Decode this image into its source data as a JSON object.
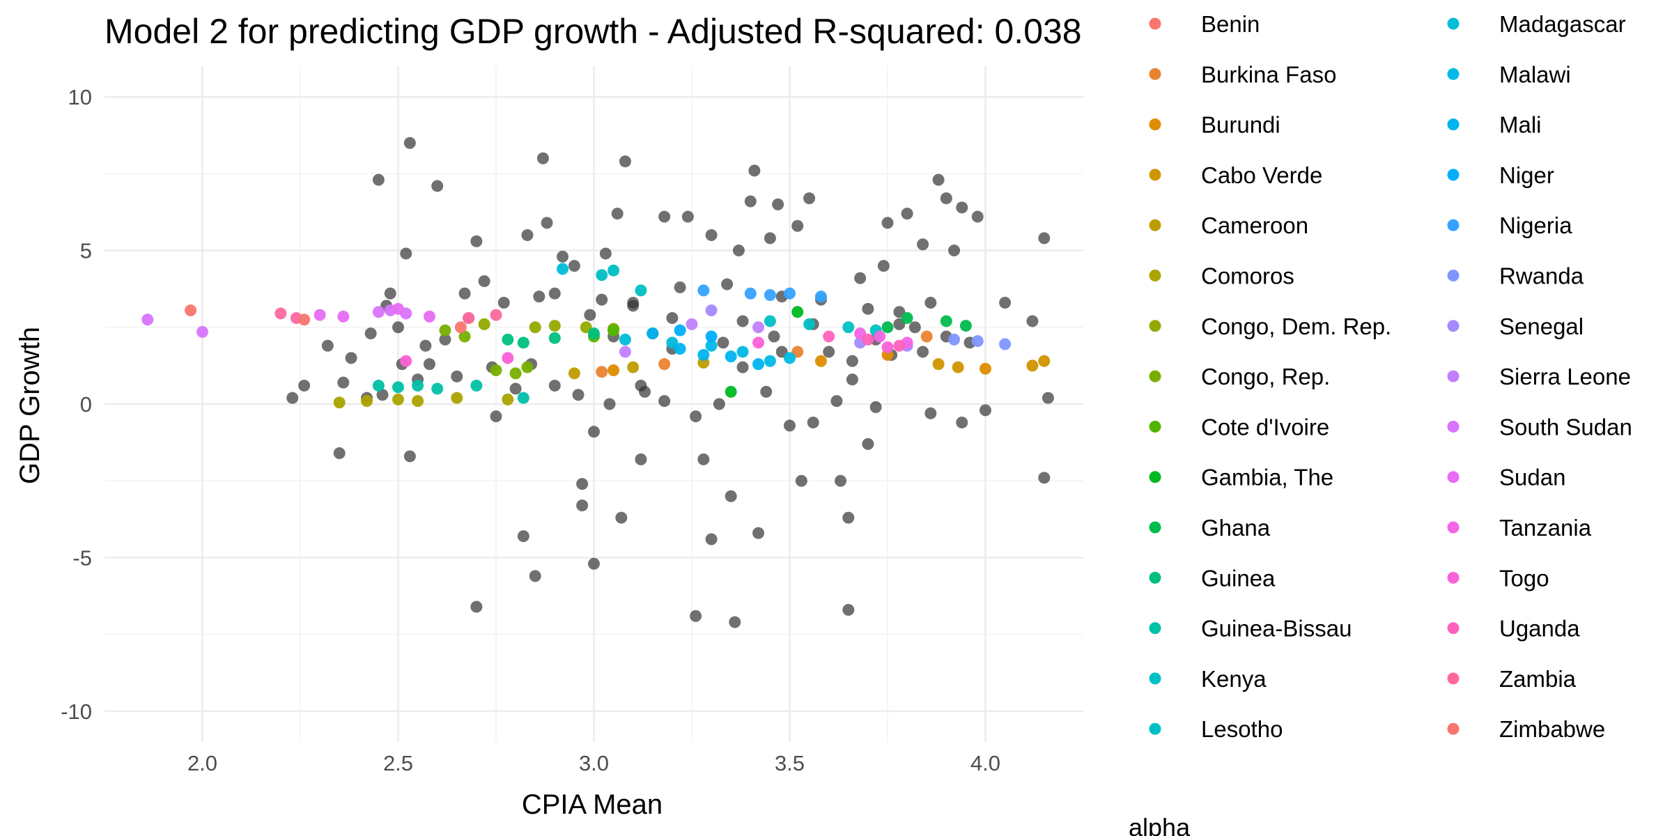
{
  "chart_data": {
    "type": "scatter",
    "title": "Model 2 for predicting GDP growth - Adjusted R-squared:  0.038",
    "xlabel": "CPIA Mean",
    "ylabel": "GDP Growth",
    "xlim": [
      1.75,
      4.25
    ],
    "ylim": [
      -11,
      11
    ],
    "xticks": [
      2.0,
      2.5,
      3.0,
      3.5,
      4.0
    ],
    "xtick_labels": [
      "2.0",
      "2.5",
      "3.0",
      "3.5",
      "4.0"
    ],
    "yticks": [
      -10,
      -5,
      0,
      5,
      10
    ],
    "ytick_labels": [
      "-10",
      "-5",
      "0",
      "5",
      "10"
    ],
    "grid": true,
    "legend_position": "right",
    "legend_title": "alpha",
    "point_colors": {
      "observed": "#333333"
    },
    "series": [
      {
        "name": "Benin",
        "color": "#F8766D",
        "values": [
          [
            1.97,
            3.05
          ]
        ]
      },
      {
        "name": "Burkina Faso",
        "color": "#EA8331",
        "values": [
          [
            3.02,
            1.05
          ],
          [
            3.18,
            1.3
          ],
          [
            3.52,
            1.7
          ],
          [
            3.85,
            2.2
          ]
        ]
      },
      {
        "name": "Burundi",
        "color": "#DD8D00",
        "values": [
          [
            3.05,
            1.1
          ],
          [
            3.58,
            1.4
          ],
          [
            3.75,
            1.6
          ],
          [
            4.0,
            1.15
          ]
        ]
      },
      {
        "name": "Cabo Verde",
        "color": "#D09400",
        "values": [
          [
            3.88,
            1.3
          ],
          [
            3.93,
            1.2
          ],
          [
            4.12,
            1.25
          ],
          [
            4.15,
            1.4
          ]
        ]
      },
      {
        "name": "Cameroon",
        "color": "#BE9C00",
        "values": [
          [
            2.95,
            1.0
          ],
          [
            3.1,
            1.2
          ],
          [
            3.28,
            1.35
          ]
        ]
      },
      {
        "name": "Comoros",
        "color": "#AAA300",
        "values": [
          [
            2.35,
            0.05
          ],
          [
            2.42,
            0.1
          ],
          [
            2.5,
            0.15
          ],
          [
            2.55,
            0.1
          ],
          [
            2.65,
            0.2
          ],
          [
            2.78,
            0.15
          ]
        ]
      },
      {
        "name": "Congo, Dem. Rep.",
        "color": "#93A900",
        "values": [
          [
            2.72,
            2.6
          ],
          [
            2.85,
            2.5
          ],
          [
            2.9,
            2.55
          ],
          [
            2.98,
            2.5
          ],
          [
            3.05,
            2.45
          ]
        ]
      },
      {
        "name": "Congo, Rep.",
        "color": "#77AE00",
        "values": [
          [
            2.62,
            2.4
          ],
          [
            2.67,
            2.2
          ],
          [
            2.75,
            1.1
          ],
          [
            2.8,
            1.0
          ],
          [
            2.83,
            1.2
          ]
        ]
      },
      {
        "name": "Cote d'Ivoire",
        "color": "#53B400",
        "values": [
          [
            3.0,
            2.2
          ],
          [
            3.05,
            2.4
          ],
          [
            3.15,
            2.3
          ]
        ]
      },
      {
        "name": "Gambia, The",
        "color": "#00B81F",
        "values": [
          [
            3.35,
            0.4
          ],
          [
            3.52,
            3.0
          ]
        ]
      },
      {
        "name": "Ghana",
        "color": "#00BB4E",
        "values": [
          [
            3.75,
            2.5
          ],
          [
            3.8,
            2.8
          ],
          [
            3.9,
            2.7
          ],
          [
            3.95,
            2.55
          ]
        ]
      },
      {
        "name": "Guinea",
        "color": "#00BF7D",
        "values": [
          [
            2.78,
            2.1
          ],
          [
            2.82,
            2.0
          ],
          [
            2.9,
            2.15
          ],
          [
            3.0,
            2.3
          ]
        ]
      },
      {
        "name": "Guinea-Bissau",
        "color": "#00C0A7",
        "values": [
          [
            2.45,
            0.6
          ],
          [
            2.5,
            0.55
          ],
          [
            2.55,
            0.6
          ],
          [
            2.6,
            0.5
          ],
          [
            2.7,
            0.6
          ],
          [
            2.82,
            0.2
          ]
        ]
      },
      {
        "name": "Kenya",
        "color": "#00C0C3",
        "values": [
          [
            3.45,
            2.7
          ],
          [
            3.55,
            2.6
          ],
          [
            3.65,
            2.5
          ],
          [
            3.72,
            2.4
          ]
        ]
      },
      {
        "name": "Lesotho",
        "color": "#00BFC4",
        "values": [
          [
            3.02,
            4.2
          ],
          [
            3.05,
            4.35
          ],
          [
            3.12,
            3.7
          ]
        ]
      },
      {
        "name": "Madagascar",
        "color": "#00BDD8",
        "values": [
          [
            2.92,
            4.4
          ],
          [
            3.08,
            2.1
          ],
          [
            3.2,
            2.0
          ]
        ]
      },
      {
        "name": "Malawi",
        "color": "#00B9E6",
        "values": [
          [
            3.3,
            1.9
          ],
          [
            3.38,
            1.7
          ],
          [
            3.45,
            1.4
          ],
          [
            3.5,
            1.5
          ]
        ]
      },
      {
        "name": "Mali",
        "color": "#00B4F0",
        "values": [
          [
            3.22,
            1.8
          ],
          [
            3.28,
            1.6
          ],
          [
            3.35,
            1.55
          ],
          [
            3.42,
            1.3
          ]
        ]
      },
      {
        "name": "Niger",
        "color": "#00AEFA",
        "values": [
          [
            3.15,
            2.3
          ],
          [
            3.22,
            2.4
          ],
          [
            3.3,
            2.2
          ]
        ]
      },
      {
        "name": "Nigeria",
        "color": "#35A2FF",
        "values": [
          [
            3.28,
            3.7
          ],
          [
            3.4,
            3.6
          ],
          [
            3.45,
            3.55
          ],
          [
            3.5,
            3.6
          ],
          [
            3.58,
            3.5
          ]
        ]
      },
      {
        "name": "Rwanda",
        "color": "#7F96FF",
        "values": [
          [
            3.92,
            2.1
          ],
          [
            3.98,
            2.05
          ],
          [
            4.05,
            1.95
          ]
        ]
      },
      {
        "name": "Senegal",
        "color": "#A58AFF",
        "values": [
          [
            3.3,
            3.05
          ],
          [
            3.68,
            2.0
          ],
          [
            3.8,
            1.9
          ]
        ]
      },
      {
        "name": "Sierra Leone",
        "color": "#C17FFF",
        "values": [
          [
            3.08,
            1.7
          ],
          [
            3.25,
            2.6
          ],
          [
            3.42,
            2.5
          ]
        ]
      },
      {
        "name": "South Sudan",
        "color": "#D874FD",
        "values": [
          [
            1.86,
            2.75
          ],
          [
            2.0,
            2.35
          ],
          [
            2.45,
            3.0
          ],
          [
            2.48,
            3.05
          ],
          [
            2.52,
            2.95
          ]
        ]
      },
      {
        "name": "Sudan",
        "color": "#E76BF3",
        "values": [
          [
            2.3,
            2.9
          ],
          [
            2.36,
            2.85
          ],
          [
            2.5,
            3.1
          ],
          [
            2.58,
            2.85
          ]
        ]
      },
      {
        "name": "Tanzania",
        "color": "#F365E6",
        "values": [
          [
            3.68,
            2.3
          ],
          [
            3.73,
            2.2
          ],
          [
            3.8,
            2.0
          ]
        ]
      },
      {
        "name": "Togo",
        "color": "#FB61D7",
        "values": [
          [
            2.52,
            1.4
          ],
          [
            2.78,
            1.5
          ],
          [
            3.42,
            2.0
          ],
          [
            3.75,
            1.85
          ]
        ]
      },
      {
        "name": "Uganda",
        "color": "#FF62BC",
        "values": [
          [
            3.6,
            2.2
          ],
          [
            3.7,
            2.1
          ],
          [
            3.78,
            1.9
          ]
        ]
      },
      {
        "name": "Zambia",
        "color": "#FF689F",
        "values": [
          [
            2.2,
            2.95
          ],
          [
            2.24,
            2.8
          ],
          [
            2.68,
            2.8
          ],
          [
            2.75,
            2.9
          ]
        ]
      },
      {
        "name": "Zimbabwe",
        "color": "#F8766D",
        "values": [
          [
            2.26,
            2.75
          ],
          [
            2.66,
            2.5
          ]
        ]
      }
    ],
    "observed": [
      [
        2.23,
        0.2
      ],
      [
        2.26,
        0.6
      ],
      [
        2.32,
        1.9
      ],
      [
        2.35,
        -1.6
      ],
      [
        2.36,
        0.7
      ],
      [
        2.38,
        1.5
      ],
      [
        2.42,
        0.2
      ],
      [
        2.43,
        2.3
      ],
      [
        2.45,
        7.3
      ],
      [
        2.47,
        3.2
      ],
      [
        2.48,
        3.6
      ],
      [
        2.5,
        2.5
      ],
      [
        2.51,
        1.3
      ],
      [
        2.52,
        4.9
      ],
      [
        2.53,
        -1.7
      ],
      [
        2.53,
        8.5
      ],
      [
        2.55,
        0.8
      ],
      [
        2.57,
        1.9
      ],
      [
        2.6,
        7.1
      ],
      [
        2.62,
        2.1
      ],
      [
        2.65,
        0.9
      ],
      [
        2.67,
        3.6
      ],
      [
        2.68,
        2.8
      ],
      [
        2.7,
        5.3
      ],
      [
        2.7,
        -6.6
      ],
      [
        2.72,
        4.0
      ],
      [
        2.75,
        -0.4
      ],
      [
        2.77,
        3.3
      ],
      [
        2.8,
        0.5
      ],
      [
        2.82,
        -4.3
      ],
      [
        2.83,
        5.5
      ],
      [
        2.85,
        -5.6
      ],
      [
        2.86,
        3.5
      ],
      [
        2.87,
        8.0
      ],
      [
        2.88,
        5.9
      ],
      [
        2.9,
        0.6
      ],
      [
        2.92,
        4.8
      ],
      [
        2.95,
        4.5
      ],
      [
        2.97,
        -2.6
      ],
      [
        2.97,
        -3.3
      ],
      [
        2.99,
        2.9
      ],
      [
        3.0,
        -5.2
      ],
      [
        3.0,
        -0.9
      ],
      [
        3.02,
        3.4
      ],
      [
        3.03,
        4.9
      ],
      [
        3.05,
        2.2
      ],
      [
        3.06,
        6.2
      ],
      [
        3.07,
        -3.7
      ],
      [
        3.08,
        7.9
      ],
      [
        3.1,
        3.3
      ],
      [
        3.12,
        -1.8
      ],
      [
        3.13,
        0.4
      ],
      [
        3.15,
        2.3
      ],
      [
        3.18,
        6.1
      ],
      [
        3.2,
        1.8
      ],
      [
        3.22,
        3.8
      ],
      [
        3.24,
        6.1
      ],
      [
        3.26,
        -6.9
      ],
      [
        3.28,
        -1.8
      ],
      [
        3.3,
        -4.4
      ],
      [
        3.3,
        5.5
      ],
      [
        3.33,
        2.0
      ],
      [
        3.35,
        -3.0
      ],
      [
        3.36,
        -7.1
      ],
      [
        3.37,
        5.0
      ],
      [
        3.38,
        1.2
      ],
      [
        3.4,
        6.6
      ],
      [
        3.41,
        7.6
      ],
      [
        3.42,
        -4.2
      ],
      [
        3.45,
        5.4
      ],
      [
        3.47,
        6.5
      ],
      [
        3.48,
        3.5
      ],
      [
        3.5,
        -0.7
      ],
      [
        3.52,
        5.8
      ],
      [
        3.53,
        -2.5
      ],
      [
        3.55,
        6.7
      ],
      [
        3.58,
        3.4
      ],
      [
        3.6,
        1.7
      ],
      [
        3.63,
        -2.5
      ],
      [
        3.65,
        -3.7
      ],
      [
        3.65,
        -6.7
      ],
      [
        3.66,
        0.8
      ],
      [
        3.68,
        4.1
      ],
      [
        3.7,
        -1.3
      ],
      [
        3.72,
        2.1
      ],
      [
        3.74,
        4.5
      ],
      [
        3.75,
        5.9
      ],
      [
        3.78,
        3.0
      ],
      [
        3.8,
        6.2
      ],
      [
        3.82,
        2.5
      ],
      [
        3.84,
        5.2
      ],
      [
        3.86,
        3.3
      ],
      [
        3.88,
        7.3
      ],
      [
        3.9,
        6.7
      ],
      [
        3.92,
        5.0
      ],
      [
        3.94,
        6.4
      ],
      [
        3.96,
        2.0
      ],
      [
        3.98,
        6.1
      ],
      [
        4.0,
        -0.2
      ],
      [
        4.05,
        3.3
      ],
      [
        4.12,
        2.7
      ],
      [
        4.15,
        5.4
      ],
      [
        4.15,
        -2.4
      ],
      [
        4.16,
        0.2
      ],
      [
        3.12,
        0.6
      ],
      [
        3.18,
        0.1
      ],
      [
        3.26,
        -0.4
      ],
      [
        3.32,
        0.0
      ],
      [
        3.44,
        0.4
      ],
      [
        3.56,
        -0.6
      ],
      [
        3.62,
        0.1
      ],
      [
        3.72,
        -0.1
      ],
      [
        3.86,
        -0.3
      ],
      [
        3.94,
        -0.6
      ],
      [
        2.96,
        0.3
      ],
      [
        3.04,
        0.0
      ],
      [
        2.84,
        1.3
      ],
      [
        2.74,
        1.2
      ],
      [
        2.58,
        1.3
      ],
      [
        2.46,
        0.3
      ],
      [
        3.38,
        2.7
      ],
      [
        3.46,
        2.2
      ],
      [
        3.56,
        2.6
      ],
      [
        3.7,
        3.1
      ],
      [
        3.78,
        2.6
      ],
      [
        3.9,
        2.2
      ],
      [
        2.9,
        3.6
      ],
      [
        3.1,
        3.2
      ],
      [
        3.2,
        2.8
      ],
      [
        3.34,
        3.9
      ],
      [
        3.48,
        1.7
      ],
      [
        3.66,
        1.4
      ],
      [
        3.76,
        1.6
      ],
      [
        3.84,
        1.7
      ]
    ]
  }
}
